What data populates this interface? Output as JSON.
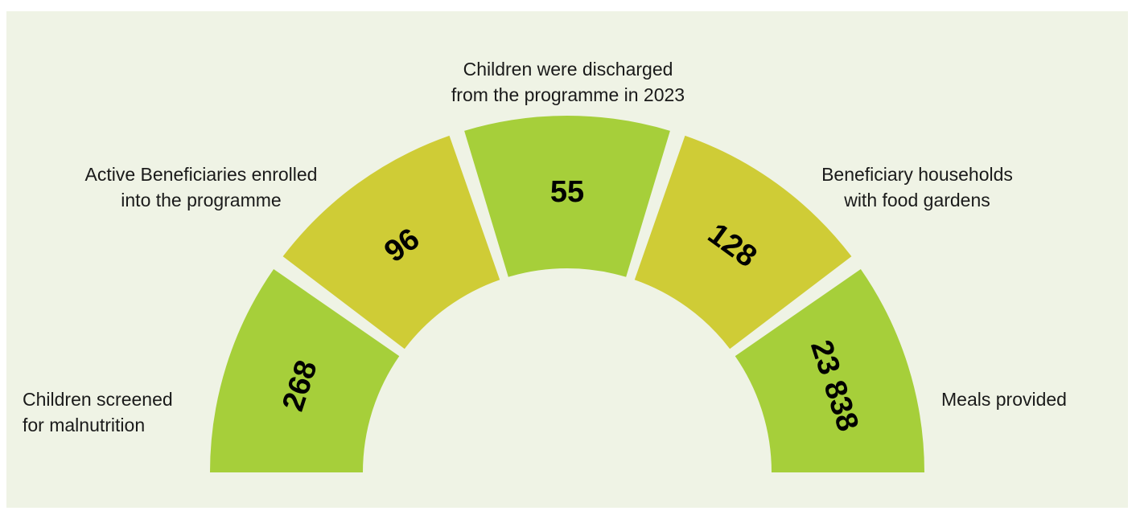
{
  "colors": {
    "background": "#eff3e5",
    "segment_green": "#a6cf3a",
    "segment_olive": "#cfcc36",
    "text": "#1a1a1a"
  },
  "segments": [
    {
      "value": "268",
      "label": "Children screened\nfor malnutrition",
      "color": "segment_green"
    },
    {
      "value": "96",
      "label": "Active Beneficiaries enrolled\ninto the programme",
      "color": "segment_olive"
    },
    {
      "value": "55",
      "label": "Children were discharged\nfrom the programme in 2023",
      "color": "segment_green"
    },
    {
      "value": "128",
      "label": "Beneficiary households\nwith food gardens",
      "color": "segment_olive"
    },
    {
      "value": "23 838",
      "label": "Meals provided",
      "color": "segment_green"
    }
  ]
}
